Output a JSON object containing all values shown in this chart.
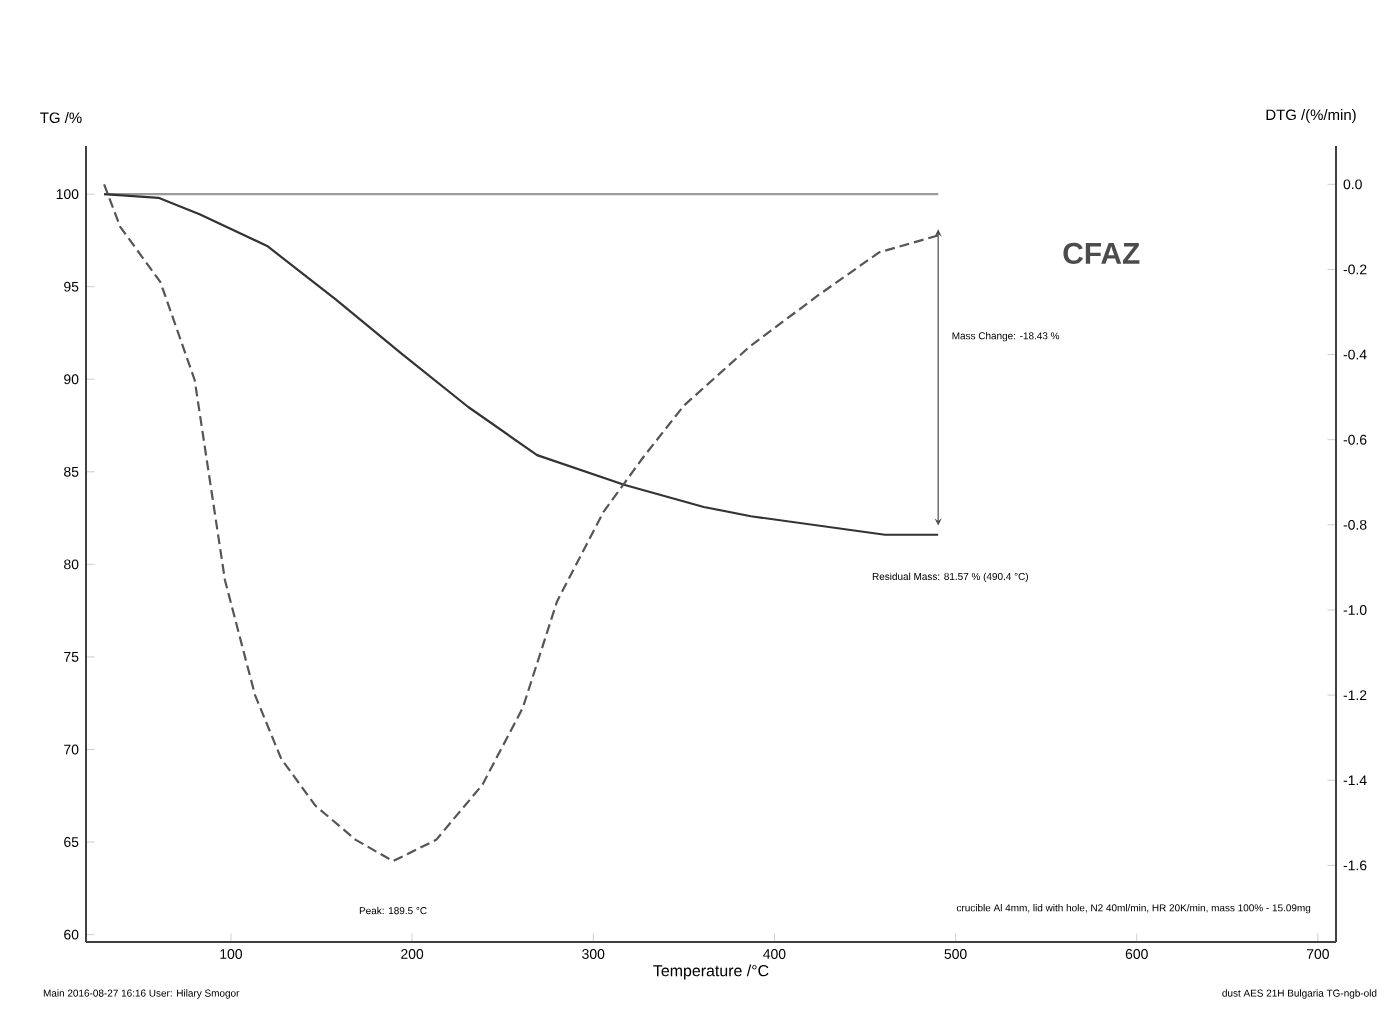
{
  "chart_data": {
    "type": "line",
    "xlabel": "Temperature /°C",
    "ylabel": "TG /%",
    "y2label": "DTG /(%/min)",
    "xlim": [
      20,
      710
    ],
    "xticks": [
      100,
      200,
      300,
      400,
      500,
      600,
      700
    ],
    "ylim": [
      59.6,
      102.6
    ],
    "yticks": [
      60,
      65,
      70,
      75,
      80,
      85,
      90,
      95,
      100
    ],
    "y2lim": [
      -1.78,
      0.09
    ],
    "y2ticks": [
      {
        "value": 0,
        "label": "0.0"
      },
      -0.2,
      -0.4,
      -0.6,
      -0.8,
      {
        "value": -1,
        "label": "-1.0"
      },
      -1.2,
      -1.4,
      -1.6
    ],
    "series": [
      {
        "color": "#9a9a9a",
        "line_style": "solid",
        "x": [
          30,
          490.4
        ],
        "values": [
          100,
          100
        ]
      },
      {
        "color": "#333333",
        "line_style": "solid",
        "x": [
          30,
          60,
          83,
          120,
          158,
          194,
          231,
          269,
          317,
          361,
          387,
          424,
          461,
          490.4
        ],
        "values": [
          100,
          99.8,
          98.9,
          97.2,
          94.3,
          91.4,
          88.5,
          85.9,
          84.3,
          83.1,
          82.6,
          82.1,
          81.6,
          81.6
        ]
      },
      {
        "color": "#555555",
        "line_style": "dashed",
        "axis": "y2",
        "x": [
          30,
          38.9,
          61.1,
          80,
          96.7,
          113.3,
          127.8,
          146.7,
          168.9,
          189.5,
          213.3,
          238.9,
          261.1,
          280,
          305.6,
          327.8,
          350,
          386.7,
          424.4,
          457.8,
          490.4
        ],
        "values": [
          0,
          -0.1,
          -0.23,
          -0.46,
          -0.93,
          -1.2,
          -1.35,
          -1.46,
          -1.54,
          -1.59,
          -1.54,
          -1.41,
          -1.23,
          -0.98,
          -0.77,
          -0.64,
          -0.52,
          -0.38,
          -0.26,
          -0.16,
          -0.12
        ]
      }
    ],
    "annotations": [
      "CFAZ",
      "Mass Change: -18.43 %",
      "Residual Mass: 81.57 % (490.4 °C)",
      "Peak: 189.5 °C",
      "crucible Al 4mm, lid with hole, N2 40ml/min, HR 20K/min, mass 100% - 15.09mg",
      "Main 2016-08-27 16:16 User: Hilary Smogor",
      "dust AES 21H Bulgaria TG-ngb-old"
    ]
  }
}
